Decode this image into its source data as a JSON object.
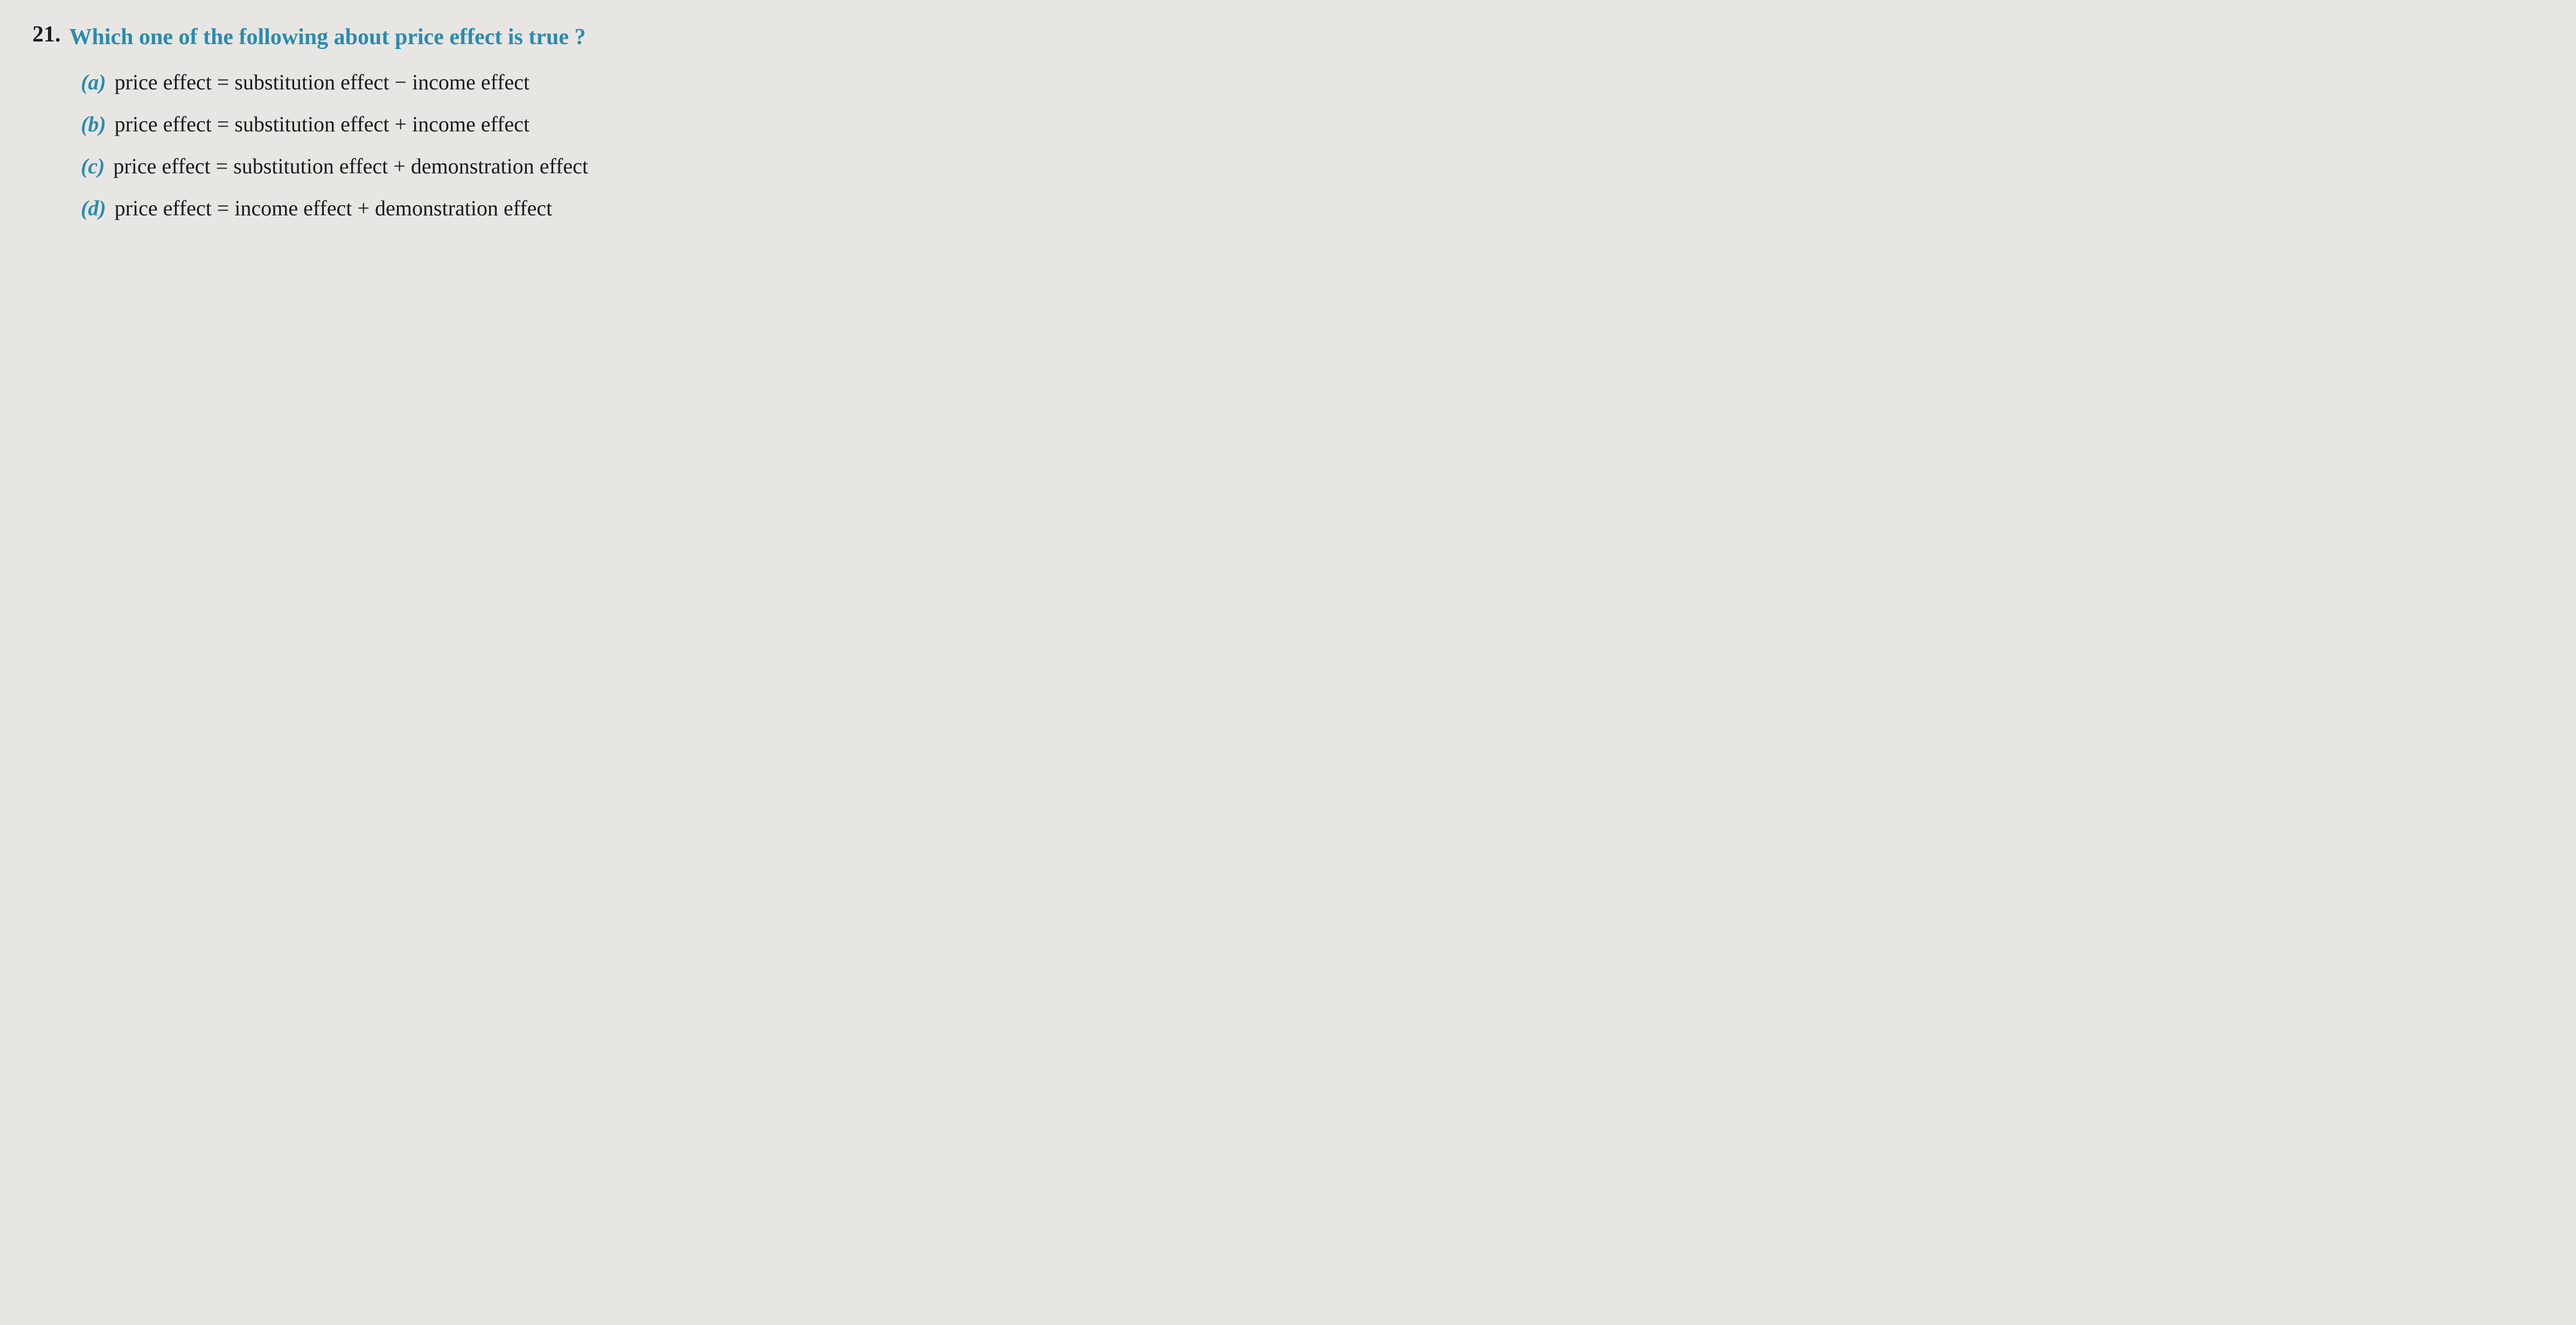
{
  "question": {
    "number": "21.",
    "text": "Which one of the following about price effect is true ?",
    "options": [
      {
        "label": "(a)",
        "text": "price effect = substitution effect − income effect"
      },
      {
        "label": "(b)",
        "text": "price effect = substitution effect + income effect"
      },
      {
        "label": "(c)",
        "text": "price effect = substitution effect + demonstration effect"
      },
      {
        "label": "(d)",
        "text": "price effect = income effect + demonstration effect"
      }
    ]
  },
  "styling": {
    "background_color": "#e8e6e2",
    "question_number_color": "#1a1a1a",
    "question_text_color": "#2a8bb0",
    "option_label_color": "#2a8bb0",
    "option_text_color": "#1a1a1a",
    "font_family": "Georgia, Times New Roman, serif",
    "question_fontsize": 42,
    "option_fontsize": 40,
    "question_fontweight": "bold",
    "option_label_fontstyle": "italic"
  }
}
